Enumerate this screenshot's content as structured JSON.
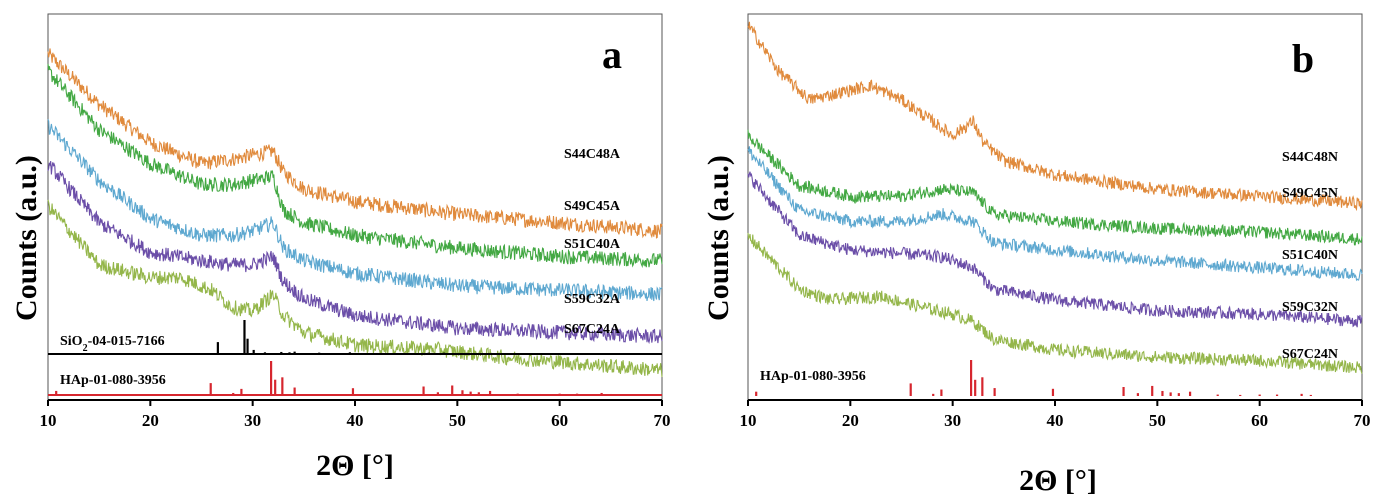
{
  "chart_data": [
    {
      "type": "line",
      "panel_label": "a",
      "xlabel": "2Θ [°]",
      "ylabel": "Counts (a.u.)",
      "xlim": [
        10,
        70
      ],
      "xticks": [
        "10",
        "20",
        "30",
        "40",
        "50",
        "60",
        "70"
      ],
      "grid": false,
      "series": [
        {
          "name": "S44C48A",
          "color": "#e08a3c",
          "x": [
            10,
            15,
            20,
            25,
            28,
            30,
            32,
            33,
            35,
            40,
            50,
            60,
            70
          ],
          "values": [
            0.92,
            0.8,
            0.71,
            0.66,
            0.67,
            0.68,
            0.69,
            0.64,
            0.6,
            0.57,
            0.54,
            0.52,
            0.5
          ]
        },
        {
          "name": "S49C45A",
          "color": "#43a843",
          "x": [
            10,
            15,
            20,
            25,
            28,
            30,
            32,
            33,
            35,
            40,
            50,
            60,
            70
          ],
          "values": [
            0.88,
            0.74,
            0.66,
            0.61,
            0.61,
            0.62,
            0.63,
            0.55,
            0.52,
            0.49,
            0.46,
            0.44,
            0.43
          ]
        },
        {
          "name": "S51C40A",
          "color": "#5ea8d0",
          "x": [
            10,
            15,
            20,
            25,
            28,
            30,
            32,
            33,
            35,
            40,
            50,
            60,
            70
          ],
          "values": [
            0.75,
            0.62,
            0.53,
            0.49,
            0.49,
            0.5,
            0.52,
            0.46,
            0.43,
            0.4,
            0.37,
            0.36,
            0.35
          ]
        },
        {
          "name": "S59C32A",
          "color": "#6b4ea8",
          "x": [
            10,
            15,
            20,
            25,
            28,
            30,
            32,
            33,
            35,
            40,
            50,
            60,
            70
          ],
          "values": [
            0.66,
            0.52,
            0.45,
            0.43,
            0.42,
            0.42,
            0.44,
            0.38,
            0.34,
            0.3,
            0.27,
            0.26,
            0.25
          ]
        },
        {
          "name": "S67C24A",
          "color": "#94b64a",
          "x": [
            10,
            15,
            20,
            23,
            26,
            28,
            30,
            32,
            33,
            35,
            40,
            48,
            55,
            60,
            70
          ],
          "values": [
            0.56,
            0.42,
            0.39,
            0.39,
            0.36,
            0.32,
            0.31,
            0.35,
            0.3,
            0.26,
            0.23,
            0.22,
            0.2,
            0.19,
            0.17
          ]
        }
      ],
      "references": [
        {
          "name": "SiO2-04-015-7166",
          "label_main": "SiO",
          "label_sub": "2",
          "label_rest": "-04-015-7166",
          "color": "#000000",
          "peaks": [
            [
              26.6,
              0.35
            ],
            [
              29.2,
              1.0
            ],
            [
              29.5,
              0.45
            ],
            [
              30.1,
              0.12
            ],
            [
              31.2,
              0.05
            ],
            [
              32.8,
              0.06
            ],
            [
              33.6,
              0.05
            ],
            [
              34.1,
              0.07
            ],
            [
              36.5,
              0.04
            ],
            [
              39.5,
              0.05
            ],
            [
              42.2,
              0.03
            ],
            [
              47.2,
              0.04
            ],
            [
              48.7,
              0.04
            ],
            [
              50.5,
              0.03
            ],
            [
              55.6,
              0.03
            ]
          ]
        },
        {
          "name": "HAp-01-080-3956",
          "color": "#d6262e",
          "peaks": [
            [
              10.8,
              0.12
            ],
            [
              25.9,
              0.35
            ],
            [
              28.1,
              0.06
            ],
            [
              28.9,
              0.18
            ],
            [
              31.8,
              1.0
            ],
            [
              32.2,
              0.45
            ],
            [
              32.9,
              0.52
            ],
            [
              34.1,
              0.22
            ],
            [
              39.8,
              0.2
            ],
            [
              46.7,
              0.25
            ],
            [
              48.1,
              0.08
            ],
            [
              49.5,
              0.28
            ],
            [
              50.5,
              0.14
            ],
            [
              51.3,
              0.1
            ],
            [
              52.1,
              0.08
            ],
            [
              53.2,
              0.12
            ],
            [
              55.9,
              0.04
            ],
            [
              58.1,
              0.03
            ],
            [
              60.0,
              0.04
            ],
            [
              61.7,
              0.04
            ],
            [
              64.1,
              0.06
            ],
            [
              65.0,
              0.03
            ]
          ]
        }
      ]
    },
    {
      "type": "line",
      "panel_label": "b",
      "xlabel": "2Θ [°]",
      "ylabel": "Counts (a.u.)",
      "xlim": [
        10,
        70
      ],
      "xticks": [
        "10",
        "20",
        "30",
        "40",
        "50",
        "60",
        "70"
      ],
      "grid": false,
      "series": [
        {
          "name": "S44C48N",
          "color": "#e08a3c",
          "x": [
            10,
            13,
            16,
            19,
            22,
            25,
            28,
            30,
            31,
            32,
            33,
            35,
            40,
            50,
            60,
            70
          ],
          "values": [
            1.05,
            0.92,
            0.84,
            0.86,
            0.88,
            0.84,
            0.78,
            0.74,
            0.76,
            0.78,
            0.72,
            0.67,
            0.63,
            0.59,
            0.57,
            0.55
          ]
        },
        {
          "name": "S49C45N",
          "color": "#43a843",
          "x": [
            10,
            15,
            20,
            25,
            29,
            32,
            34,
            40,
            50,
            60,
            70
          ],
          "values": [
            0.74,
            0.6,
            0.57,
            0.57,
            0.59,
            0.58,
            0.52,
            0.5,
            0.48,
            0.47,
            0.45
          ]
        },
        {
          "name": "S51C40N",
          "color": "#5ea8d0",
          "x": [
            10,
            15,
            20,
            25,
            29,
            32,
            34,
            40,
            50,
            60,
            70
          ],
          "values": [
            0.7,
            0.53,
            0.5,
            0.5,
            0.52,
            0.5,
            0.44,
            0.42,
            0.39,
            0.37,
            0.35
          ]
        },
        {
          "name": "S59C32N",
          "color": "#6b4ea8",
          "x": [
            10,
            15,
            20,
            25,
            29,
            32,
            34,
            40,
            50,
            60,
            70
          ],
          "values": [
            0.63,
            0.46,
            0.42,
            0.41,
            0.4,
            0.37,
            0.31,
            0.28,
            0.25,
            0.24,
            0.22
          ]
        },
        {
          "name": "S67C24N",
          "color": "#94b64a",
          "x": [
            10,
            15,
            18,
            23,
            27,
            30,
            32,
            34,
            40,
            50,
            60,
            70
          ],
          "values": [
            0.46,
            0.31,
            0.28,
            0.29,
            0.26,
            0.24,
            0.22,
            0.17,
            0.14,
            0.12,
            0.11,
            0.09
          ]
        }
      ],
      "references": [
        {
          "name": "HAp-01-080-3956",
          "color": "#d6262e",
          "peaks": [
            [
              10.8,
              0.12
            ],
            [
              25.9,
              0.35
            ],
            [
              28.1,
              0.06
            ],
            [
              28.9,
              0.18
            ],
            [
              31.8,
              1.0
            ],
            [
              32.2,
              0.45
            ],
            [
              32.9,
              0.52
            ],
            [
              34.1,
              0.22
            ],
            [
              39.8,
              0.2
            ],
            [
              46.7,
              0.25
            ],
            [
              48.1,
              0.08
            ],
            [
              49.5,
              0.28
            ],
            [
              50.5,
              0.14
            ],
            [
              51.3,
              0.1
            ],
            [
              52.1,
              0.08
            ],
            [
              53.2,
              0.12
            ],
            [
              55.9,
              0.04
            ],
            [
              58.1,
              0.03
            ],
            [
              60.0,
              0.04
            ],
            [
              61.7,
              0.04
            ],
            [
              64.1,
              0.06
            ],
            [
              65.0,
              0.03
            ]
          ]
        }
      ]
    }
  ]
}
